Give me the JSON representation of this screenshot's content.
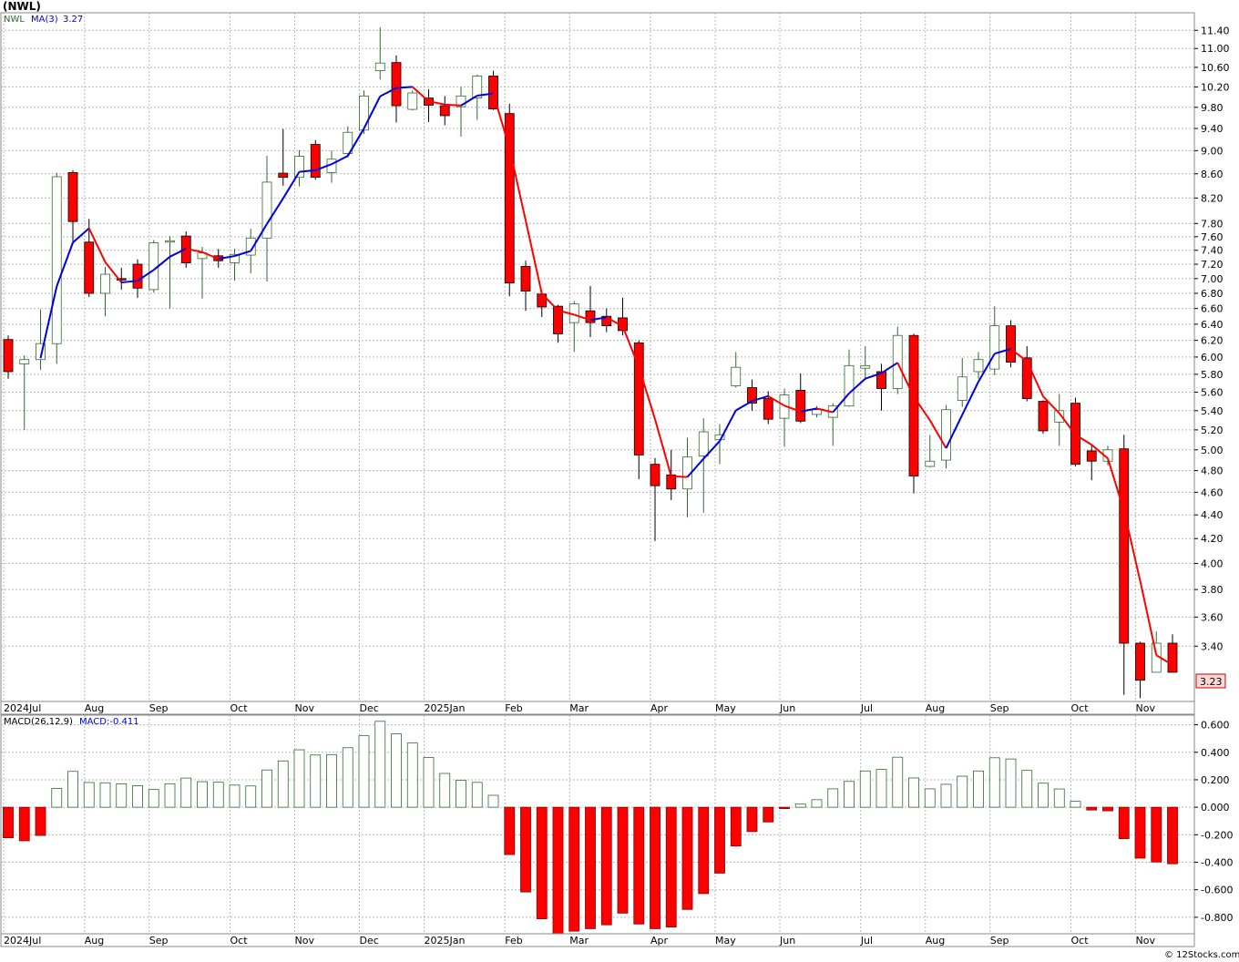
{
  "title": "(NWL)",
  "footer": "© 12Stocks.com",
  "colors": {
    "up_fill": "#ffffff",
    "up_stroke": "#2f6b2f",
    "down": "#ff0000",
    "ma_up": "#0000dd",
    "ma_down": "#ff0000",
    "grid": "#b8b8b8",
    "price_label_bg": "#ffd8d8"
  },
  "chart_data": [
    {
      "type": "candlestick",
      "symbol": "NWL",
      "legend": {
        "symbol_label": "NWL",
        "ma_label": "MA(3)",
        "ma_value": "3.27"
      },
      "last_price_label": "3.23",
      "y_scale": "log",
      "ylim": [
        3.05,
        11.8
      ],
      "y_ticks": [
        11.4,
        11.0,
        10.6,
        10.2,
        9.8,
        9.4,
        9.0,
        8.6,
        8.2,
        7.8,
        7.6,
        7.4,
        7.2,
        7.0,
        6.8,
        6.6,
        6.4,
        6.2,
        6.0,
        5.8,
        5.6,
        5.4,
        5.2,
        5.0,
        4.8,
        4.6,
        4.4,
        4.2,
        4.0,
        3.8,
        3.6,
        3.4
      ],
      "x_labels": [
        "2024Jul",
        "Aug",
        "Sep",
        "Oct",
        "Nov",
        "Dec",
        "2025Jan",
        "Feb",
        "Mar",
        "Apr",
        "May",
        "Jun",
        "Jul",
        "Aug",
        "Sep",
        "Oct",
        "Nov"
      ],
      "x_label_week_index": [
        0,
        5,
        9,
        14,
        18,
        22,
        26,
        31,
        35,
        40,
        44,
        48,
        53,
        57,
        61,
        66,
        70
      ],
      "candles": [
        {
          "o": 6.21,
          "h": 6.26,
          "l": 5.75,
          "c": 5.83
        },
        {
          "o": 5.92,
          "h": 6.02,
          "l": 5.2,
          "c": 5.97
        },
        {
          "o": 5.97,
          "h": 6.59,
          "l": 5.85,
          "c": 6.16
        },
        {
          "o": 6.16,
          "h": 8.62,
          "l": 5.92,
          "c": 8.55
        },
        {
          "o": 8.62,
          "h": 8.66,
          "l": 7.5,
          "c": 7.83
        },
        {
          "o": 7.52,
          "h": 7.87,
          "l": 6.75,
          "c": 6.8
        },
        {
          "o": 6.8,
          "h": 7.16,
          "l": 6.5,
          "c": 7.06
        },
        {
          "o": 7.0,
          "h": 7.15,
          "l": 6.85,
          "c": 6.98
        },
        {
          "o": 7.2,
          "h": 7.27,
          "l": 6.74,
          "c": 6.87
        },
        {
          "o": 6.85,
          "h": 7.55,
          "l": 6.81,
          "c": 7.51
        },
        {
          "o": 7.52,
          "h": 7.61,
          "l": 6.6,
          "c": 7.54
        },
        {
          "o": 7.61,
          "h": 7.68,
          "l": 7.15,
          "c": 7.22
        },
        {
          "o": 7.28,
          "h": 7.45,
          "l": 6.73,
          "c": 7.36
        },
        {
          "o": 7.32,
          "h": 7.42,
          "l": 7.15,
          "c": 7.25
        },
        {
          "o": 7.22,
          "h": 7.42,
          "l": 6.97,
          "c": 7.34
        },
        {
          "o": 7.33,
          "h": 7.72,
          "l": 7.07,
          "c": 7.58
        },
        {
          "o": 7.58,
          "h": 8.91,
          "l": 6.96,
          "c": 8.46
        },
        {
          "o": 8.61,
          "h": 9.39,
          "l": 8.4,
          "c": 8.54
        },
        {
          "o": 8.54,
          "h": 9.01,
          "l": 8.39,
          "c": 8.9
        },
        {
          "o": 9.11,
          "h": 9.19,
          "l": 8.5,
          "c": 8.54
        },
        {
          "o": 8.62,
          "h": 9.0,
          "l": 8.45,
          "c": 8.85
        },
        {
          "o": 8.95,
          "h": 9.44,
          "l": 8.88,
          "c": 9.33
        },
        {
          "o": 9.37,
          "h": 10.13,
          "l": 9.3,
          "c": 10.02
        },
        {
          "o": 10.53,
          "h": 11.47,
          "l": 10.35,
          "c": 10.69
        },
        {
          "o": 10.7,
          "h": 10.85,
          "l": 9.51,
          "c": 9.83
        },
        {
          "o": 9.76,
          "h": 10.13,
          "l": 9.74,
          "c": 10.08
        },
        {
          "o": 9.98,
          "h": 10.15,
          "l": 9.52,
          "c": 9.84
        },
        {
          "o": 9.83,
          "h": 10.02,
          "l": 9.46,
          "c": 9.64
        },
        {
          "o": 9.81,
          "h": 10.2,
          "l": 9.25,
          "c": 10.02
        },
        {
          "o": 9.98,
          "h": 10.45,
          "l": 9.56,
          "c": 10.42
        },
        {
          "o": 10.42,
          "h": 10.53,
          "l": 9.75,
          "c": 9.77
        },
        {
          "o": 9.68,
          "h": 9.87,
          "l": 6.76,
          "c": 6.94
        },
        {
          "o": 7.17,
          "h": 7.25,
          "l": 6.57,
          "c": 6.83
        },
        {
          "o": 6.79,
          "h": 6.84,
          "l": 6.49,
          "c": 6.62
        },
        {
          "o": 6.63,
          "h": 6.65,
          "l": 6.17,
          "c": 6.28
        },
        {
          "o": 6.42,
          "h": 6.7,
          "l": 6.06,
          "c": 6.66
        },
        {
          "o": 6.57,
          "h": 6.9,
          "l": 6.24,
          "c": 6.42
        },
        {
          "o": 6.5,
          "h": 6.6,
          "l": 6.3,
          "c": 6.38
        },
        {
          "o": 6.48,
          "h": 6.74,
          "l": 6.26,
          "c": 6.32
        },
        {
          "o": 6.17,
          "h": 6.2,
          "l": 4.72,
          "c": 4.95
        },
        {
          "o": 4.86,
          "h": 4.92,
          "l": 4.18,
          "c": 4.66
        },
        {
          "o": 4.76,
          "h": 5.0,
          "l": 4.53,
          "c": 4.63
        },
        {
          "o": 4.63,
          "h": 5.12,
          "l": 4.38,
          "c": 4.93
        },
        {
          "o": 4.94,
          "h": 5.32,
          "l": 4.42,
          "c": 5.18
        },
        {
          "o": 5.1,
          "h": 5.26,
          "l": 4.86,
          "c": 5.15
        },
        {
          "o": 5.67,
          "h": 6.06,
          "l": 5.65,
          "c": 5.88
        },
        {
          "o": 5.65,
          "h": 5.74,
          "l": 5.4,
          "c": 5.48
        },
        {
          "o": 5.53,
          "h": 5.61,
          "l": 5.26,
          "c": 5.31
        },
        {
          "o": 5.32,
          "h": 5.64,
          "l": 5.03,
          "c": 5.57
        },
        {
          "o": 5.62,
          "h": 5.81,
          "l": 5.27,
          "c": 5.29
        },
        {
          "o": 5.36,
          "h": 5.45,
          "l": 5.33,
          "c": 5.41
        },
        {
          "o": 5.33,
          "h": 5.48,
          "l": 5.04,
          "c": 5.45
        },
        {
          "o": 5.45,
          "h": 6.09,
          "l": 5.44,
          "c": 5.9
        },
        {
          "o": 5.87,
          "h": 6.13,
          "l": 5.74,
          "c": 5.9
        },
        {
          "o": 5.83,
          "h": 5.92,
          "l": 5.4,
          "c": 5.64
        },
        {
          "o": 5.64,
          "h": 6.37,
          "l": 5.58,
          "c": 6.26
        },
        {
          "o": 6.26,
          "h": 6.28,
          "l": 4.59,
          "c": 4.75
        },
        {
          "o": 4.84,
          "h": 5.15,
          "l": 4.83,
          "c": 4.89
        },
        {
          "o": 4.9,
          "h": 5.46,
          "l": 4.82,
          "c": 5.41
        },
        {
          "o": 5.51,
          "h": 5.99,
          "l": 5.44,
          "c": 5.77
        },
        {
          "o": 5.83,
          "h": 6.06,
          "l": 5.75,
          "c": 5.97
        },
        {
          "o": 5.86,
          "h": 6.63,
          "l": 5.79,
          "c": 6.38
        },
        {
          "o": 6.38,
          "h": 6.45,
          "l": 5.88,
          "c": 5.94
        },
        {
          "o": 5.99,
          "h": 6.13,
          "l": 5.5,
          "c": 5.53
        },
        {
          "o": 5.5,
          "h": 5.51,
          "l": 5.16,
          "c": 5.19
        },
        {
          "o": 5.28,
          "h": 5.58,
          "l": 5.04,
          "c": 5.4
        },
        {
          "o": 5.48,
          "h": 5.54,
          "l": 4.84,
          "c": 4.86
        },
        {
          "o": 4.99,
          "h": 5.05,
          "l": 4.71,
          "c": 4.89
        },
        {
          "o": 4.89,
          "h": 5.04,
          "l": 4.85,
          "c": 5.0
        },
        {
          "o": 5.01,
          "h": 5.15,
          "l": 3.09,
          "c": 3.42
        },
        {
          "o": 3.42,
          "h": 3.43,
          "l": 3.07,
          "c": 3.18
        },
        {
          "o": 3.23,
          "h": 3.5,
          "l": 3.26,
          "c": 3.42
        },
        {
          "o": 3.42,
          "h": 3.48,
          "l": 3.26,
          "c": 3.23
        }
      ]
    },
    {
      "type": "bar",
      "indicator": "MACD",
      "legend": {
        "name": "MACD(26,12,9)",
        "value_label": "MACD:-0.411"
      },
      "ylim": [
        -0.92,
        0.67
      ],
      "y_ticks": [
        0.6,
        0.4,
        0.2,
        0.0,
        -0.2,
        -0.4,
        -0.6,
        -0.8
      ],
      "values": [
        -0.222,
        -0.244,
        -0.205,
        0.137,
        0.261,
        0.18,
        0.178,
        0.17,
        0.157,
        0.129,
        0.171,
        0.212,
        0.186,
        0.182,
        0.161,
        0.155,
        0.271,
        0.337,
        0.418,
        0.38,
        0.383,
        0.433,
        0.52,
        0.625,
        0.534,
        0.467,
        0.362,
        0.246,
        0.197,
        0.181,
        0.087,
        -0.344,
        -0.616,
        -0.811,
        -0.921,
        -0.901,
        -0.883,
        -0.855,
        -0.77,
        -0.849,
        -0.883,
        -0.871,
        -0.743,
        -0.628,
        -0.479,
        -0.282,
        -0.177,
        -0.107,
        -0.01,
        0.023,
        0.055,
        0.134,
        0.188,
        0.264,
        0.275,
        0.364,
        0.213,
        0.134,
        0.167,
        0.226,
        0.264,
        0.36,
        0.351,
        0.268,
        0.175,
        0.133,
        0.043,
        -0.02,
        -0.026,
        -0.228,
        -0.37,
        -0.398,
        -0.411
      ]
    }
  ]
}
